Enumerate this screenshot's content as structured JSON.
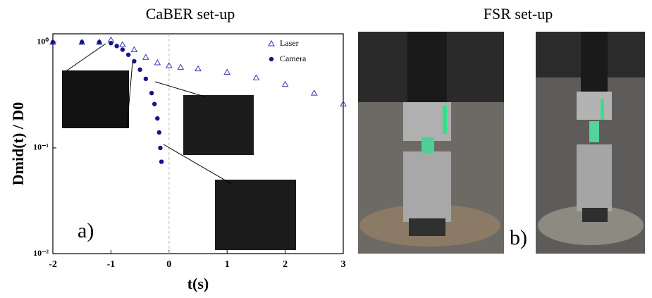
{
  "panel_titles": [
    "CaBER set-up",
    "FSR set-up"
  ],
  "panel_labels": [
    "a)",
    "b)"
  ],
  "chart_data": {
    "type": "scatter",
    "x_label": "t(s)",
    "y_label": "Dmid(t) / D0",
    "xlim": [
      -2,
      3
    ],
    "xticks": [
      -2,
      -1,
      0,
      1,
      2,
      3
    ],
    "ylim": [
      0.01,
      1.2
    ],
    "yticks": [
      {
        "value": 1,
        "label": "10⁰"
      },
      {
        "value": 0.1,
        "label": "10⁻¹"
      },
      {
        "value": 0.01,
        "label": "10⁻²"
      }
    ],
    "log_y": true,
    "vline": 0,
    "legend": "upper-right",
    "series": [
      {
        "name": "Laser",
        "color": "#3a3ab0",
        "marker": "triangle",
        "x": [
          -2,
          -1.5,
          -1.2,
          -1,
          -0.8,
          -0.6,
          -0.4,
          -0.2,
          0,
          0.2,
          0.5,
          1,
          1.5,
          2,
          2.5,
          3
        ],
        "values": [
          1,
          1,
          1,
          1.05,
          0.95,
          0.85,
          0.72,
          0.64,
          0.6,
          0.58,
          0.56,
          0.52,
          0.46,
          0.4,
          0.33,
          0.26
        ]
      },
      {
        "name": "Camera",
        "color": "#14148a",
        "marker": "circle",
        "x": [
          -2,
          -1.5,
          -1.2,
          -1,
          -0.9,
          -0.8,
          -0.7,
          -0.6,
          -0.5,
          -0.4,
          -0.3,
          -0.25,
          -0.2,
          -0.17,
          -0.15,
          -0.13
        ],
        "values": [
          1,
          1,
          1,
          0.98,
          0.92,
          0.85,
          0.76,
          0.66,
          0.55,
          0.45,
          0.33,
          0.26,
          0.19,
          0.14,
          0.1,
          0.074
        ]
      }
    ]
  }
}
